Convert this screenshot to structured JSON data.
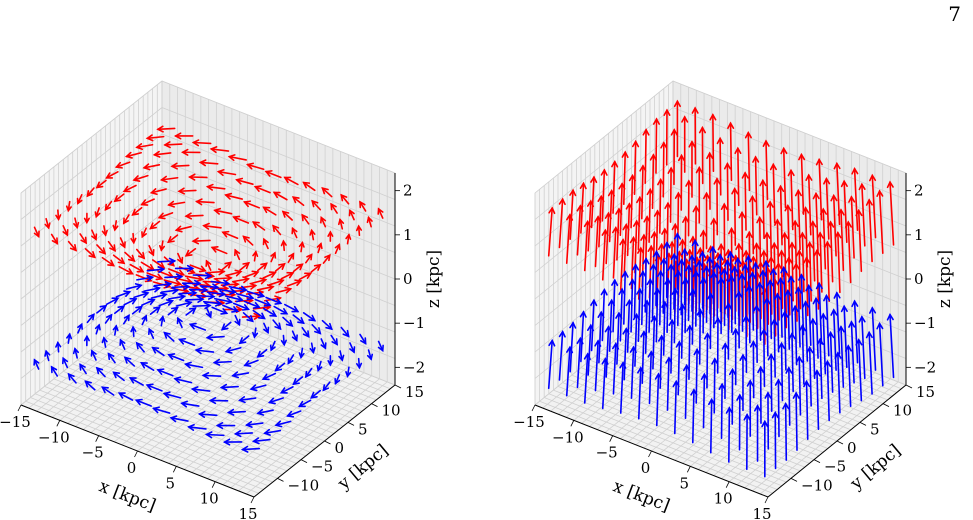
{
  "page_number": "7",
  "chart_data": [
    {
      "type": "quiver3d",
      "panel": "left",
      "xlabel": "x [kpc]",
      "ylabel": "y [kpc]",
      "zlabel": "z [kpc]",
      "xlim": [
        -15,
        15
      ],
      "ylim": [
        -15,
        15
      ],
      "zlim": [
        -2.4,
        2.4
      ],
      "xticks": [
        "−15",
        "−10",
        "−5",
        "0",
        "5",
        "10",
        "15"
      ],
      "yticks": [
        "−10",
        "−5",
        "0",
        "5",
        "10",
        "15"
      ],
      "zticks": [
        "−2",
        "−1",
        "0",
        "1",
        "2"
      ],
      "grid": true,
      "field_pattern": "azimuthal",
      "series": [
        {
          "color": "#ff0000",
          "z": 1.5,
          "sense": "counter-rotating"
        },
        {
          "color": "#0000ff",
          "z": -1.5,
          "sense": "co-rotating"
        }
      ]
    },
    {
      "type": "quiver3d",
      "panel": "right",
      "xlabel": "x [kpc]",
      "ylabel": "y [kpc]",
      "zlabel": "z [kpc]",
      "xlim": [
        -15,
        15
      ],
      "ylim": [
        -15,
        15
      ],
      "zlim": [
        -2.4,
        2.4
      ],
      "xticks": [
        "−15",
        "−10",
        "−5",
        "0",
        "5",
        "10",
        "15"
      ],
      "yticks": [
        "−10",
        "−5",
        "0",
        "5",
        "10",
        "15"
      ],
      "zticks": [
        "−2",
        "−1",
        "0",
        "1",
        "2"
      ],
      "grid": true,
      "field_pattern": "vertical-x-shaped",
      "series": [
        {
          "color": "#ff0000",
          "z": 1.5,
          "sense": "upward"
        },
        {
          "color": "#0000ff",
          "z": -1.5,
          "sense": "upward"
        }
      ]
    }
  ]
}
